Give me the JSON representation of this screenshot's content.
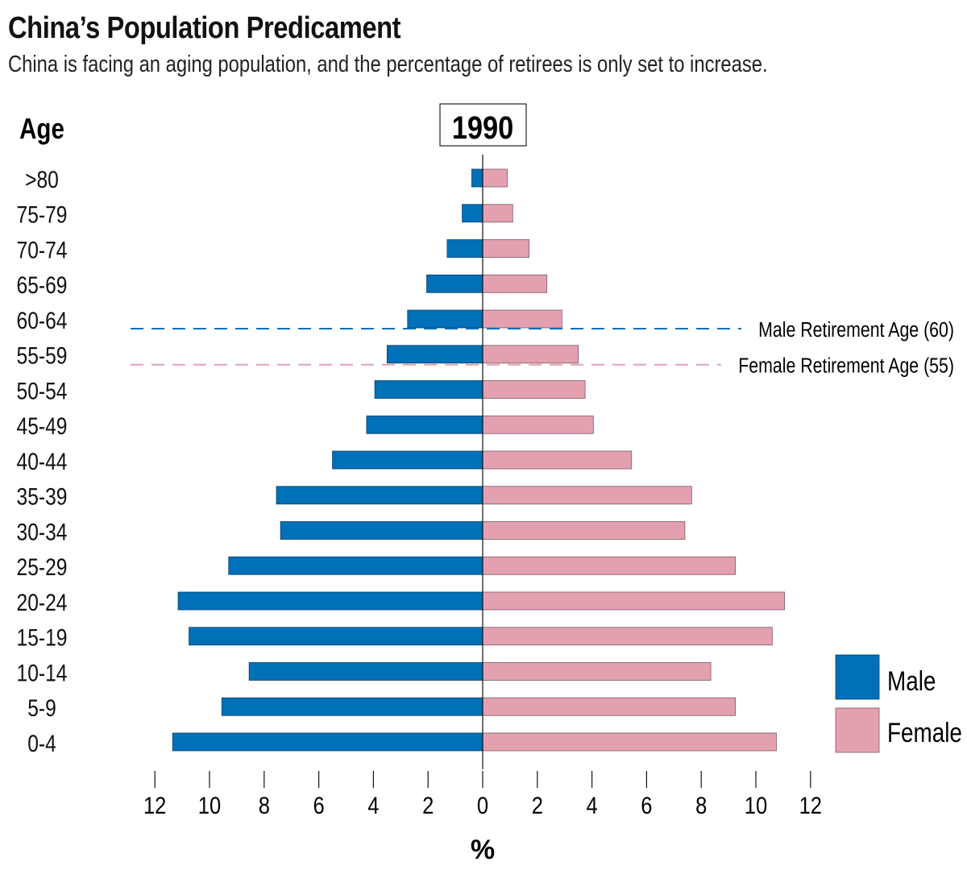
{
  "header": {
    "title": "China’s Population Predicament",
    "subtitle": "China is facing an aging population, and the percentage of retirees is only set to increase."
  },
  "chart_data": {
    "type": "bar",
    "orientation": "horizontal-population-pyramid",
    "year_label": "1990",
    "ylabel": "Age",
    "xlabel": "%",
    "categories": [
      ">80",
      "75-79",
      "70-74",
      "65-69",
      "60-64",
      "55-59",
      "50-54",
      "45-49",
      "40-44",
      "35-39",
      "30-34",
      "25-29",
      "20-24",
      "15-19",
      "10-14",
      "5-9",
      "0-4"
    ],
    "series": [
      {
        "name": "Male",
        "color": "#0070b8",
        "values": [
          0.4,
          0.75,
          1.3,
          2.05,
          2.75,
          3.5,
          3.95,
          4.25,
          5.5,
          7.55,
          7.4,
          9.3,
          11.15,
          10.75,
          8.55,
          9.55,
          11.35
        ]
      },
      {
        "name": "Female",
        "color": "#e3a1b0",
        "values": [
          0.9,
          1.1,
          1.7,
          2.35,
          2.9,
          3.5,
          3.75,
          4.05,
          5.45,
          7.65,
          7.4,
          9.25,
          11.05,
          10.6,
          8.35,
          9.25,
          10.75
        ]
      }
    ],
    "xlim": [
      -12,
      12
    ],
    "ticks": [
      "12",
      "10",
      "8",
      "6",
      "4",
      "2",
      "0",
      "2",
      "4",
      "6",
      "8",
      "10",
      "12"
    ],
    "annotations": [
      {
        "label": "Male Retirement Age (60)",
        "color": "#0070b8"
      },
      {
        "label": "Female Retirement Age (55)",
        "color": "#e3a1b0"
      }
    ],
    "legend": {
      "position": "bottom-right",
      "items": [
        "Male",
        "Female"
      ]
    }
  }
}
